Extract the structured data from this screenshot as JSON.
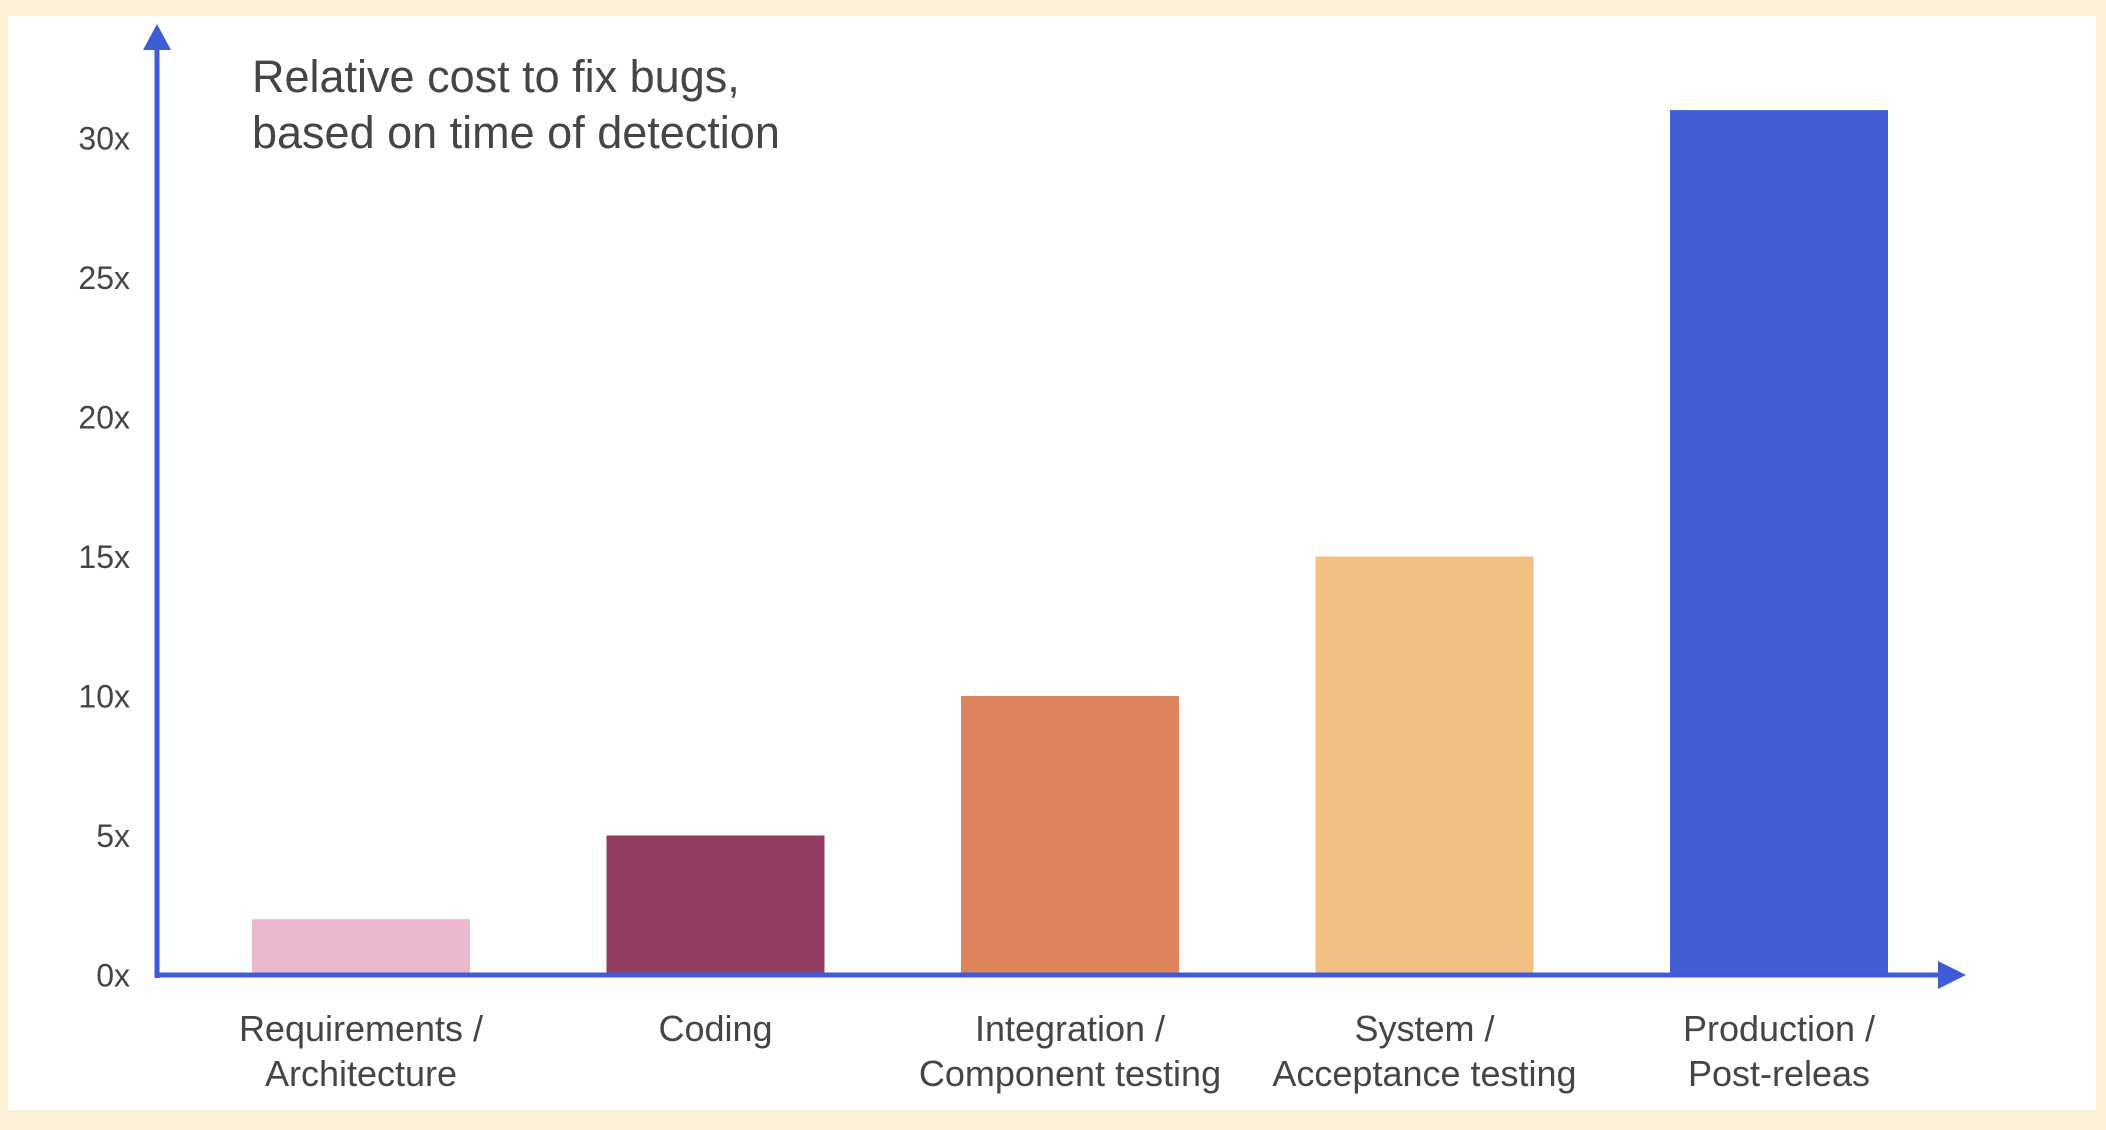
{
  "chart_data": {
    "type": "bar",
    "title": [
      "Relative cost to fix bugs,",
      "based on time of detection"
    ],
    "xlabel": "",
    "ylabel": "",
    "ylim": [
      0,
      32
    ],
    "yticks": [
      0,
      5,
      10,
      15,
      20,
      25,
      30
    ],
    "ytick_labels": [
      "0x",
      "5x",
      "10x",
      "15x",
      "20x",
      "25x",
      "30x"
    ],
    "categories": [
      [
        "Requirements /",
        "Architecture"
      ],
      [
        "Coding"
      ],
      [
        "Integration /",
        "Component testing"
      ],
      [
        "System /",
        "Acceptance testing"
      ],
      [
        "Production /",
        "Post-releas"
      ]
    ],
    "values": [
      2,
      5,
      10,
      15,
      31
    ],
    "colors": [
      "#ecb8cf",
      "#943d63",
      "#de845d",
      "#f2bf83",
      "#415fd3"
    ],
    "axis_color": "#3f5bd6",
    "grid": false,
    "legend": "none"
  }
}
